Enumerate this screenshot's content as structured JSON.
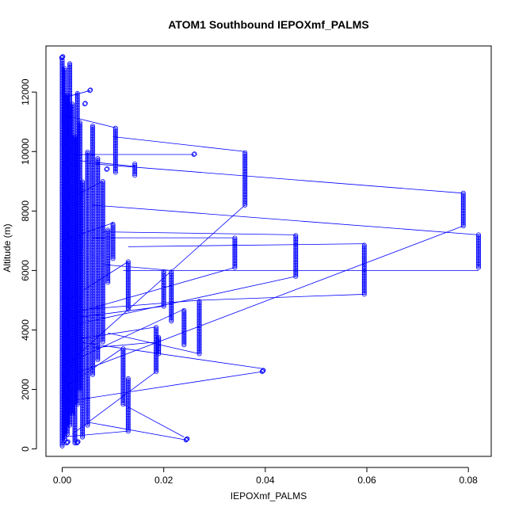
{
  "chart_data": {
    "type": "scatter",
    "title": "ATOM1 Southbound IEPOXmf_PALMS",
    "xlabel": "IEPOXmf_PALMS",
    "ylabel": "Altitude (m)",
    "xlim": [
      -0.0032,
      0.0845
    ],
    "ylim": [
      -250,
      13550
    ],
    "x_ticks": [
      0.0,
      0.02,
      0.04,
      0.06,
      0.08
    ],
    "x_tick_labels": [
      "0.00",
      "0.02",
      "0.04",
      "0.06",
      "0.08"
    ],
    "y_ticks": [
      0,
      2000,
      4000,
      6000,
      8000,
      10000,
      12000
    ],
    "y_tick_labels": [
      "0",
      "2000",
      "4000",
      "6000",
      "8000",
      "10000",
      "12000"
    ],
    "grid": false,
    "series_color": "#0000ff",
    "marker": "open-circle",
    "connected": true,
    "segments": [
      {
        "x": 0.0,
        "y0": 100,
        "y1": 13100
      },
      {
        "x": 0.0005,
        "y0": 300,
        "y1": 12800
      },
      {
        "x": 0.001,
        "y0": 500,
        "y1": 11900
      },
      {
        "x": 0.0015,
        "y0": 800,
        "y1": 13000
      },
      {
        "x": 0.002,
        "y0": 1200,
        "y1": 11600
      },
      {
        "x": 0.0025,
        "y0": 200,
        "y1": 10500
      },
      {
        "x": 0.003,
        "y0": 1500,
        "y1": 12000
      },
      {
        "x": 0.0035,
        "y0": 2000,
        "y1": 11000
      },
      {
        "x": 0.004,
        "y0": 400,
        "y1": 9000
      },
      {
        "x": 0.005,
        "y0": 800,
        "y1": 10000
      },
      {
        "x": 0.006,
        "y0": 2500,
        "y1": 10900
      },
      {
        "x": 0.007,
        "y0": 3000,
        "y1": 9800
      },
      {
        "x": 0.008,
        "y0": 3600,
        "y1": 9000
      },
      {
        "x": 0.009,
        "y0": 5600,
        "y1": 7400
      },
      {
        "x": 0.01,
        "y0": 6400,
        "y1": 7600
      },
      {
        "x": 0.0105,
        "y0": 9300,
        "y1": 10800
      },
      {
        "x": 0.012,
        "y0": 1500,
        "y1": 3400
      },
      {
        "x": 0.013,
        "y0": 600,
        "y1": 2400
      },
      {
        "x": 0.013,
        "y0": 4700,
        "y1": 6300
      },
      {
        "x": 0.0143,
        "y0": 9200,
        "y1": 9600
      },
      {
        "x": 0.0185,
        "y0": 2600,
        "y1": 4100
      },
      {
        "x": 0.019,
        "y0": 3200,
        "y1": 3800
      },
      {
        "x": 0.02,
        "y0": 4800,
        "y1": 6000
      },
      {
        "x": 0.0215,
        "y0": 4300,
        "y1": 6000
      },
      {
        "x": 0.024,
        "y0": 3500,
        "y1": 4700
      },
      {
        "x": 0.027,
        "y0": 3200,
        "y1": 5000
      },
      {
        "x": 0.034,
        "y0": 6100,
        "y1": 7100
      },
      {
        "x": 0.036,
        "y0": 8200,
        "y1": 10000
      },
      {
        "x": 0.046,
        "y0": 5800,
        "y1": 7200
      },
      {
        "x": 0.0595,
        "y0": 5200,
        "y1": 6900
      },
      {
        "x": 0.079,
        "y0": 7500,
        "y1": 8600
      },
      {
        "x": 0.082,
        "y0": 6100,
        "y1": 7200
      }
    ],
    "clusters": [
      {
        "x": 0.0,
        "y": 13150,
        "n": 3
      },
      {
        "x": 0.0245,
        "y": 300,
        "n": 3
      },
      {
        "x": 0.0395,
        "y": 2600,
        "n": 3
      },
      {
        "x": 0.026,
        "y": 9900,
        "n": 2
      },
      {
        "x": 0.0055,
        "y": 12050,
        "n": 2
      },
      {
        "x": 0.0045,
        "y": 11600,
        "n": 2
      },
      {
        "x": 0.003,
        "y": 200,
        "n": 3
      },
      {
        "x": 0.001,
        "y": 200,
        "n": 3
      },
      {
        "x": 0.0088,
        "y": 9400,
        "n": 2
      }
    ],
    "connectors": [
      [
        0.036,
        10000,
        0.01,
        10500
      ],
      [
        0.036,
        8200,
        0.002,
        3000
      ],
      [
        0.079,
        8600,
        0.005,
        9600
      ],
      [
        0.079,
        7500,
        0.002,
        2500
      ],
      [
        0.082,
        7200,
        0.006,
        8200
      ],
      [
        0.082,
        6000,
        0.012,
        6000
      ],
      [
        0.034,
        7100,
        0.006,
        7100
      ],
      [
        0.034,
        6100,
        0.001,
        4500
      ],
      [
        0.046,
        7200,
        0.008,
        7300
      ],
      [
        0.046,
        5800,
        0.003,
        4200
      ],
      [
        0.0595,
        6900,
        0.013,
        6800
      ],
      [
        0.0595,
        5200,
        0.027,
        5000
      ],
      [
        0.027,
        5000,
        0.005,
        4700
      ],
      [
        0.027,
        3200,
        0.009,
        3900
      ],
      [
        0.024,
        4700,
        0.0,
        2800
      ],
      [
        0.024,
        400,
        0.012,
        1500
      ],
      [
        0.02,
        4800,
        0.002,
        4400
      ],
      [
        0.0215,
        6000,
        0.008,
        6200
      ],
      [
        0.0185,
        4100,
        0.003,
        3700
      ],
      [
        0.0185,
        2600,
        0.002,
        500
      ],
      [
        0.019,
        3600,
        0.006,
        3400
      ],
      [
        0.0395,
        2700,
        0.003,
        3600
      ],
      [
        0.0395,
        2600,
        0.001,
        1600
      ],
      [
        0.0245,
        300,
        0.005,
        900
      ],
      [
        0.013,
        600,
        0.0,
        400
      ],
      [
        0.026,
        9900,
        0.002,
        9900
      ],
      [
        0.0143,
        9500,
        0.003,
        9700
      ],
      [
        0.0105,
        10800,
        0.001,
        11200
      ],
      [
        0.0055,
        12050,
        0.0,
        11800
      ],
      [
        0.01,
        7600,
        0.0,
        7000
      ],
      [
        0.013,
        6300,
        0.001,
        5000
      ],
      [
        0.012,
        3400,
        0.0,
        2000
      ],
      [
        0.008,
        9000,
        0.0,
        8300
      ]
    ]
  }
}
